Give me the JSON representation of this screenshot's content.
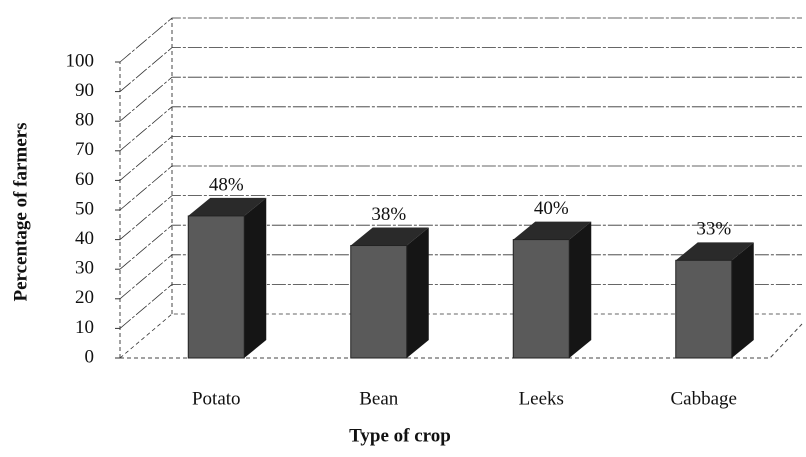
{
  "chart_data": {
    "type": "bar3d",
    "categories": [
      "Potato",
      "Bean",
      "Leeks",
      "Cabbage"
    ],
    "values": [
      48,
      38,
      40,
      33
    ],
    "value_labels": [
      "48%",
      "38%",
      "40%",
      "33%"
    ],
    "color": "#5a5a5a",
    "xlabel": "Type of crop",
    "ylabel": "Percentage of farmers",
    "ylim": [
      0,
      100
    ],
    "yticks": [
      0,
      10,
      20,
      30,
      40,
      50,
      60,
      70,
      80,
      90,
      100
    ],
    "grid": true
  }
}
